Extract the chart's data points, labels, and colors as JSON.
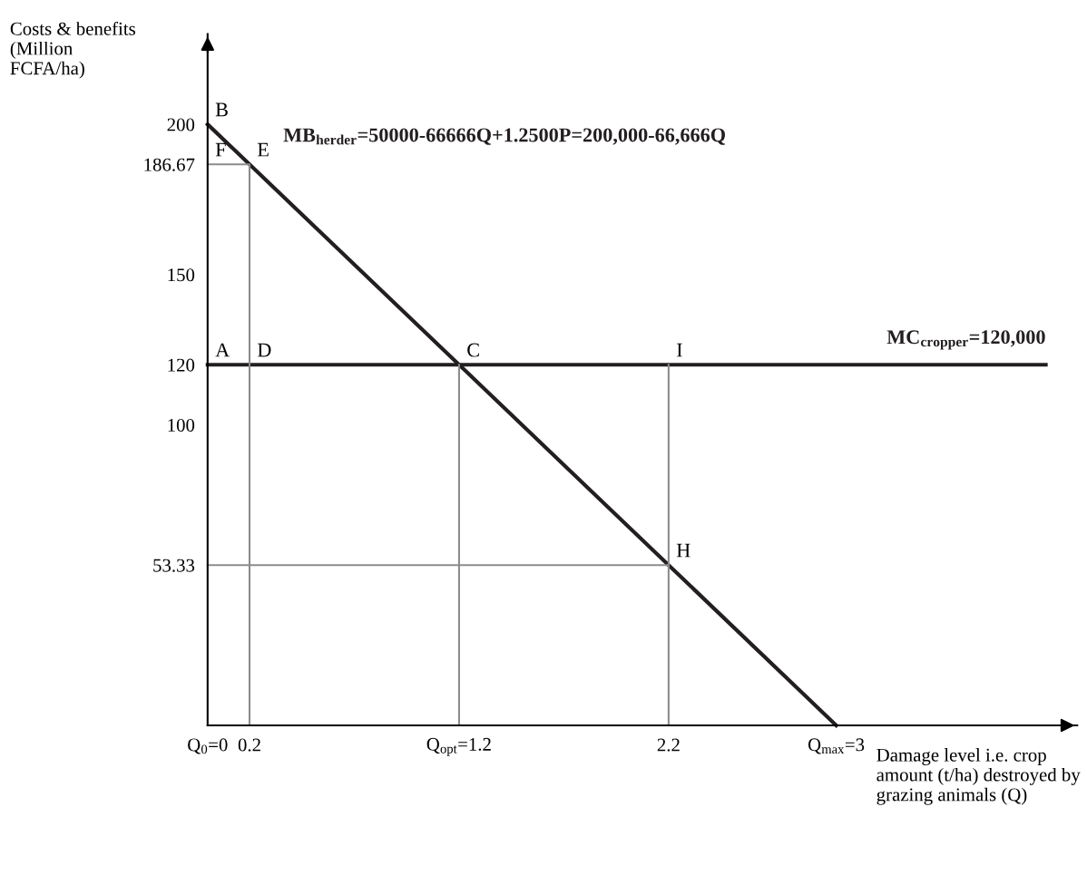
{
  "chart_data": {
    "type": "line",
    "xlabel": "Damage level i.e. crop amount (t/ha) destroyed by grazing animals (Q)",
    "ylabel": "Costs & benefits (Million FCFA/ha)",
    "xlim": [
      0,
      4.15
    ],
    "ylim": [
      0,
      230
    ],
    "xticks": [
      {
        "value": 0,
        "label": "Q$_{0}$=0"
      },
      0.2,
      {
        "value": 1.2,
        "label": "Q$_{opt}$=1.2"
      },
      2.2,
      {
        "value": 3,
        "label": "Q$_{max}$=3"
      }
    ],
    "yticks": [
      53.33,
      100,
      120,
      150,
      186.67,
      200
    ],
    "grid": false,
    "marker": "none",
    "series": [
      {
        "name": "MB$_{herder}$=50000-66666Q+1.2500P=200,000-66,666Q",
        "color": "#231f20",
        "x": [
          0,
          0.2,
          1.2,
          2.2,
          3
        ],
        "values": [
          200,
          186.67,
          120,
          53.33,
          0
        ]
      },
      {
        "name": "MC$_{cropper}$=120,000",
        "color": "#231f20",
        "x": [
          0,
          4.0
        ],
        "values": [
          120,
          120
        ]
      },
      {
        "color": "#8c8c8c",
        "x": [
          0,
          0.2,
          0.2
        ],
        "values": [
          186.67,
          186.67,
          0
        ]
      },
      {
        "color": "#8c8c8c",
        "x": [
          1.2,
          1.2
        ],
        "values": [
          120,
          0
        ]
      },
      {
        "color": "#8c8c8c",
        "x": [
          0,
          2.2
        ],
        "values": [
          53.33,
          53.33
        ]
      },
      {
        "color": "#8c8c8c",
        "x": [
          2.2,
          2.2
        ],
        "values": [
          120,
          0
        ]
      }
    ],
    "annotations": [
      {
        "text": "B",
        "x": 0,
        "y": 200
      },
      {
        "text": "F",
        "x": 0,
        "y": 186.67
      },
      {
        "text": "E",
        "x": 0.2,
        "y": 186.67
      },
      {
        "text": "A",
        "x": 0,
        "y": 120
      },
      {
        "text": "D",
        "x": 0.2,
        "y": 120
      },
      {
        "text": "C",
        "x": 1.2,
        "y": 120
      },
      {
        "text": "I",
        "x": 2.2,
        "y": 120
      },
      {
        "text": "H",
        "x": 2.2,
        "y": 53.33
      }
    ]
  }
}
